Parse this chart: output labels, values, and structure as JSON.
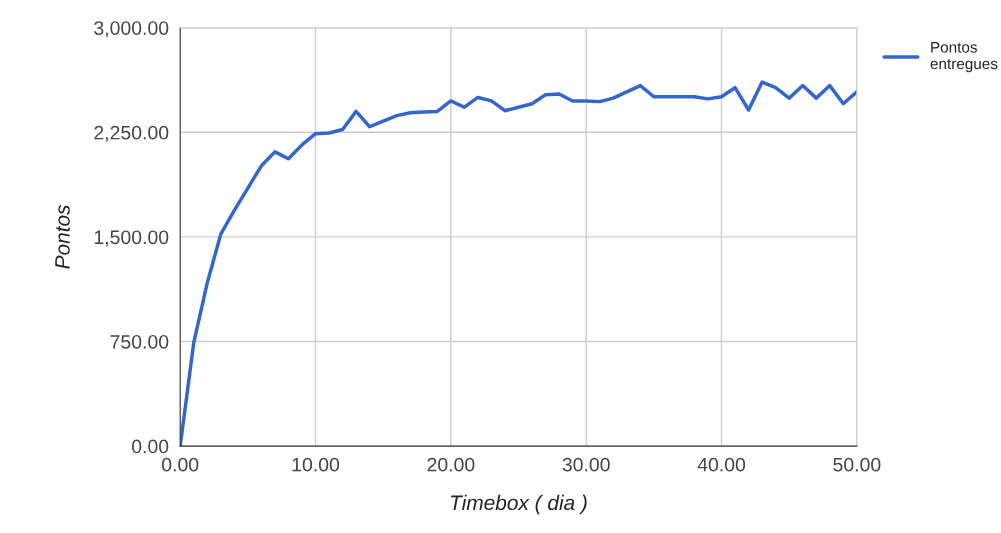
{
  "chart_data": {
    "type": "line",
    "xlabel": "Timebox ( dia )",
    "ylabel": "Pontos",
    "x": [
      0,
      1,
      2,
      3,
      4,
      5,
      6,
      7,
      8,
      9,
      10,
      11,
      12,
      13,
      14,
      15,
      16,
      17,
      18,
      19,
      20,
      21,
      22,
      23,
      24,
      25,
      26,
      27,
      28,
      29,
      30,
      31,
      32,
      33,
      34,
      35,
      36,
      37,
      38,
      39,
      40,
      41,
      42,
      43,
      44,
      45,
      46,
      47,
      48,
      49,
      50
    ],
    "series": [
      {
        "name": "Pontos entregues",
        "color": "#3366cc",
        "values": [
          0,
          740,
          1170,
          1520,
          1690,
          1850,
          2010,
          2110,
          2060,
          2160,
          2240,
          2245,
          2270,
          2400,
          2290,
          2330,
          2370,
          2390,
          2395,
          2400,
          2475,
          2430,
          2500,
          2475,
          2405,
          2430,
          2455,
          2520,
          2525,
          2475,
          2475,
          2470,
          2495,
          2540,
          2585,
          2505,
          2505,
          2505,
          2505,
          2490,
          2505,
          2570,
          2410,
          2610,
          2570,
          2495,
          2585,
          2495,
          2585,
          2455,
          2540
        ]
      }
    ],
    "xlim": [
      0,
      50
    ],
    "ylim": [
      0,
      3000
    ],
    "xticks": [
      {
        "value": 0,
        "label": "0.00"
      },
      {
        "value": 10,
        "label": "10.00"
      },
      {
        "value": 20,
        "label": "20.00"
      },
      {
        "value": 30,
        "label": "30.00"
      },
      {
        "value": 40,
        "label": "40.00"
      },
      {
        "value": 50,
        "label": "50.00"
      }
    ],
    "yticks": [
      {
        "value": 0,
        "label": "0.00"
      },
      {
        "value": 750,
        "label": "750.00"
      },
      {
        "value": 1500,
        "label": "1,500.00"
      },
      {
        "value": 2250,
        "label": "2,250.00"
      },
      {
        "value": 3000,
        "label": "3,000.00"
      }
    ],
    "grid": true,
    "legend": "top right",
    "marker": "none",
    "line_style": "solid"
  }
}
